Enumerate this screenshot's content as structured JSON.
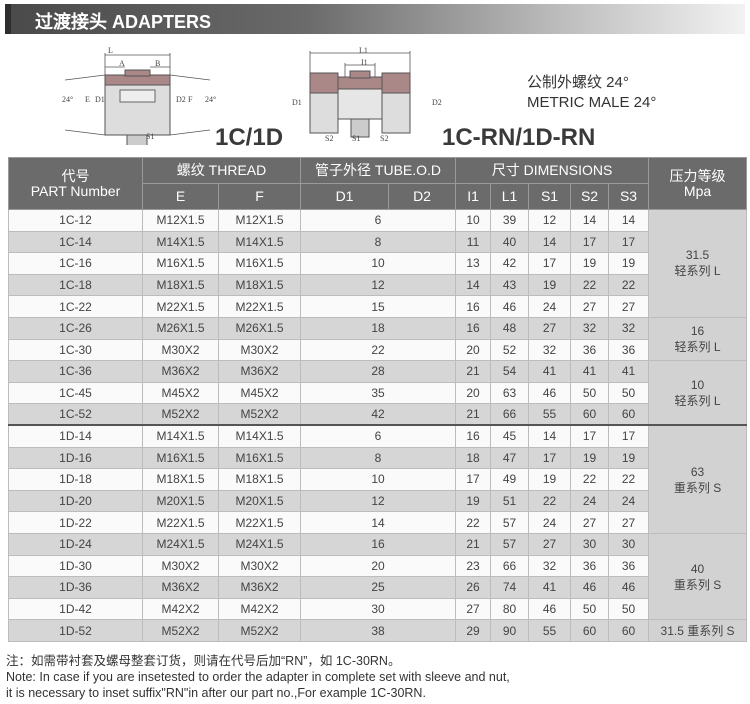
{
  "header": {
    "title": "过渡接头  ADAPTERS"
  },
  "diagram1": {
    "name": "1C/1D",
    "labels": {
      "L": "L",
      "A": "A",
      "B": "B",
      "angle_left": "24°",
      "angle_right": "24°",
      "E": "E",
      "D1": "D1",
      "D2": "D2",
      "F": "F",
      "S1": "S1"
    }
  },
  "diagram2": {
    "name": "1C-RN/1D-RN",
    "labels": {
      "L1": "L1",
      "I1": "I1",
      "D1": "D1",
      "D2": "D2",
      "S1": "S1",
      "S2": "S2",
      "S3": "S2"
    }
  },
  "metric": {
    "line1": "公制外螺纹 24°",
    "line2": "METRIC MALE 24°"
  },
  "table": {
    "headers": {
      "part_cn": "代号",
      "part_en": "PART Number",
      "thread": "螺纹 THREAD",
      "tube": "管子外径 TUBE.O.D",
      "dims": "尺寸 DIMENSIONS",
      "pressure_cn": "压力等级",
      "pressure_en": "Mpa",
      "E": "E",
      "F": "F",
      "D1": "D1",
      "D2": "D2",
      "I1": "I1",
      "L1": "L1",
      "S1": "S1",
      "S2": "S2",
      "S3": "S3"
    },
    "rows": [
      [
        "1C-12",
        "M12X1.5",
        "M12X1.5",
        "6",
        "10",
        "39",
        "12",
        "14",
        "14"
      ],
      [
        "1C-14",
        "M14X1.5",
        "M14X1.5",
        "8",
        "11",
        "40",
        "14",
        "17",
        "17"
      ],
      [
        "1C-16",
        "M16X1.5",
        "M16X1.5",
        "10",
        "13",
        "42",
        "17",
        "19",
        "19"
      ],
      [
        "1C-18",
        "M18X1.5",
        "M18X1.5",
        "12",
        "14",
        "43",
        "19",
        "22",
        "22"
      ],
      [
        "1C-22",
        "M22X1.5",
        "M22X1.5",
        "15",
        "16",
        "46",
        "24",
        "27",
        "27"
      ],
      [
        "1C-26",
        "M26X1.5",
        "M26X1.5",
        "18",
        "16",
        "48",
        "27",
        "32",
        "32"
      ],
      [
        "1C-30",
        "M30X2",
        "M30X2",
        "22",
        "20",
        "52",
        "32",
        "36",
        "36"
      ],
      [
        "1C-36",
        "M36X2",
        "M36X2",
        "28",
        "21",
        "54",
        "41",
        "41",
        "41"
      ],
      [
        "1C-45",
        "M45X2",
        "M45X2",
        "35",
        "20",
        "63",
        "46",
        "50",
        "50"
      ],
      [
        "1C-52",
        "M52X2",
        "M52X2",
        "42",
        "21",
        "66",
        "55",
        "60",
        "60"
      ],
      [
        "1D-14",
        "M14X1.5",
        "M14X1.5",
        "6",
        "16",
        "45",
        "14",
        "17",
        "17"
      ],
      [
        "1D-16",
        "M16X1.5",
        "M16X1.5",
        "8",
        "18",
        "47",
        "17",
        "19",
        "19"
      ],
      [
        "1D-18",
        "M18X1.5",
        "M18X1.5",
        "10",
        "17",
        "49",
        "19",
        "22",
        "22"
      ],
      [
        "1D-20",
        "M20X1.5",
        "M20X1.5",
        "12",
        "19",
        "51",
        "22",
        "24",
        "24"
      ],
      [
        "1D-22",
        "M22X1.5",
        "M22X1.5",
        "14",
        "22",
        "57",
        "24",
        "27",
        "27"
      ],
      [
        "1D-24",
        "M24X1.5",
        "M24X1.5",
        "16",
        "21",
        "57",
        "27",
        "30",
        "30"
      ],
      [
        "1D-30",
        "M30X2",
        "M30X2",
        "20",
        "23",
        "66",
        "32",
        "36",
        "36"
      ],
      [
        "1D-36",
        "M36X2",
        "M36X2",
        "25",
        "26",
        "74",
        "41",
        "46",
        "46"
      ],
      [
        "1D-42",
        "M42X2",
        "M42X2",
        "30",
        "27",
        "80",
        "46",
        "50",
        "50"
      ],
      [
        "1D-52",
        "M52X2",
        "M52X2",
        "38",
        "29",
        "90",
        "55",
        "60",
        "60"
      ]
    ],
    "pressure_groups": [
      {
        "rows": 5,
        "value": "31.5",
        "series": "轻系列 L"
      },
      {
        "rows": 2,
        "value": "16",
        "series": "轻系列 L"
      },
      {
        "rows": 3,
        "value": "10",
        "series": "轻系列 L"
      },
      {
        "rows": 5,
        "value": "63",
        "series": "重系列 S"
      },
      {
        "rows": 4,
        "value": "40",
        "series": "重系列 S"
      },
      {
        "rows": 1,
        "value": "31.5 重系列 S",
        "series": ""
      }
    ]
  },
  "notes": {
    "cn": "注：如需带衬套及螺母整套订货，则请在代号后加“RN”，如 1C-30RN。",
    "en1": "Note: In case if you are insetested to order the adapter in complete set with sleeve and nut,",
    "en2": "it is necessary to inset suffix\"RN\"in after our part no.,For example 1C-30RN."
  }
}
